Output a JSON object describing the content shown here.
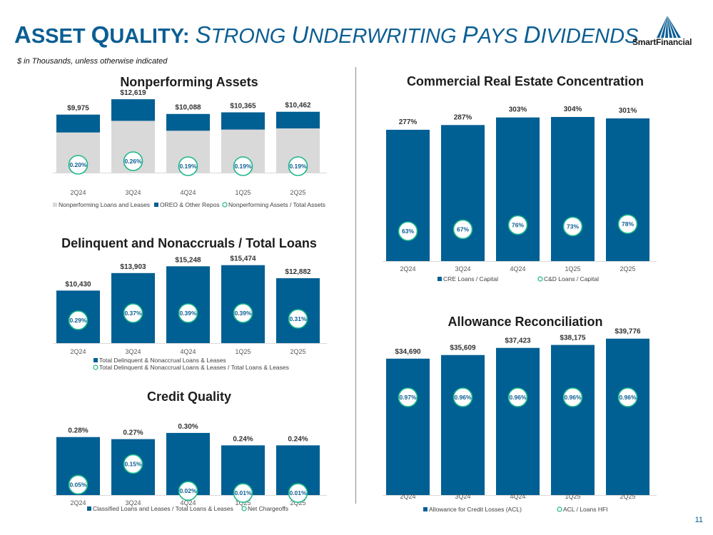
{
  "header": {
    "title_a_big": "A",
    "title_a_rest": "SSET",
    "title_q_big": "Q",
    "title_q_rest": "UALITY:",
    "title_s_big": "S",
    "title_s_rest": "TRONG",
    "title_u_big": "U",
    "title_u_rest": "NDERWRITING",
    "title_p_big": "P",
    "title_p_rest": "AYS",
    "title_d_big": "D",
    "title_d_rest": "IVIDENDS",
    "subtitle": "$ in Thousands, unless otherwise indicated",
    "logo_text": "SmartFinancial",
    "page_number": "11"
  },
  "colors": {
    "blue": "#005f93",
    "gray": "#d9d9d9",
    "green": "#1cb88b",
    "label_blue": "#0b5e93"
  },
  "chart_data": [
    {
      "id": "npa",
      "type": "bar",
      "title": "Nonperforming Assets",
      "categories": [
        "2Q24",
        "3Q24",
        "4Q24",
        "1Q25",
        "2Q25"
      ],
      "totals_labels": [
        "$9,975",
        "$12,619",
        "$10,088",
        "$10,365",
        "$10,462"
      ],
      "series": [
        {
          "name": "Nonperforming Loans and Leases",
          "values": [
            6900,
            8900,
            7200,
            7400,
            7600
          ]
        },
        {
          "name": "OREO & Other Repos",
          "values": [
            3075,
            3719,
            2888,
            2965,
            2862
          ]
        }
      ],
      "ratio": {
        "name": "Nonperforming Assets / Total Assets",
        "labels": [
          "0.20%",
          "0.26%",
          "0.19%",
          "0.19%",
          "0.19%"
        ]
      },
      "ylim": [
        0,
        13000
      ]
    },
    {
      "id": "delinq",
      "type": "bar",
      "title": "Delinquent and Nonaccruals / Total Loans",
      "categories": [
        "2Q24",
        "3Q24",
        "4Q24",
        "1Q25",
        "2Q25"
      ],
      "values": [
        10430,
        13903,
        15248,
        15474,
        12882
      ],
      "value_labels": [
        "$10,430",
        "$13,903",
        "$15,248",
        "$15,474",
        "$12,882"
      ],
      "series_name": "Total Delinquent & Nonaccrual Loans & Leases",
      "ratio": {
        "name": "Total Delinquent & Nonaccrual Loans & Leases / Total Loans & Leases",
        "labels": [
          "0.29%",
          "0.37%",
          "0.39%",
          "0.39%",
          "0.31%"
        ]
      },
      "ylim": [
        0,
        16000
      ]
    },
    {
      "id": "credit",
      "type": "bar",
      "title": "Credit Quality",
      "categories": [
        "2Q24",
        "3Q24",
        "4Q24",
        "1Q25",
        "2Q25"
      ],
      "values": [
        0.28,
        0.27,
        0.3,
        0.24,
        0.24
      ],
      "value_labels": [
        "0.28%",
        "0.27%",
        "0.30%",
        "0.24%",
        "0.24%"
      ],
      "series_name": "Classified Loans and Leases / Total Loans & Leases",
      "ratio": {
        "name": "Net Chargeoffs",
        "labels": [
          "0.05%",
          "0.15%",
          "0.02%",
          "0.01%",
          "0.01%"
        ],
        "values": [
          0.05,
          0.15,
          0.02,
          0.01,
          0.01
        ]
      },
      "ylim": [
        0,
        0.31
      ]
    },
    {
      "id": "cre",
      "type": "bar",
      "title": "Commercial Real Estate Concentration",
      "categories": [
        "2Q24",
        "3Q24",
        "4Q24",
        "1Q25",
        "2Q25"
      ],
      "values": [
        277,
        287,
        303,
        304,
        301
      ],
      "value_labels": [
        "277%",
        "287%",
        "303%",
        "304%",
        "301%"
      ],
      "series_name": "CRE Loans / Capital",
      "ratio": {
        "name": "C&D Loans / Capital",
        "labels": [
          "63%",
          "67%",
          "76%",
          "73%",
          "78%"
        ],
        "values": [
          63,
          67,
          76,
          73,
          78
        ]
      },
      "ylim": [
        0,
        310
      ]
    },
    {
      "id": "acl",
      "type": "bar",
      "title": "Allowance Reconciliation",
      "categories": [
        "2Q24",
        "3Q24",
        "4Q24",
        "1Q25",
        "2Q25"
      ],
      "values": [
        34690,
        35609,
        37423,
        38175,
        39776
      ],
      "value_labels": [
        "$34,690",
        "$35,609",
        "$37,423",
        "$38,175",
        "$39,776"
      ],
      "series_name": "Allowance for Credit Losses (ACL)",
      "ratio": {
        "name": "ACL / Loans HFI",
        "labels": [
          "0.97%",
          "0.96%",
          "0.96%",
          "0.96%",
          "0.96%"
        ]
      },
      "ylim": [
        0,
        41000
      ]
    }
  ]
}
